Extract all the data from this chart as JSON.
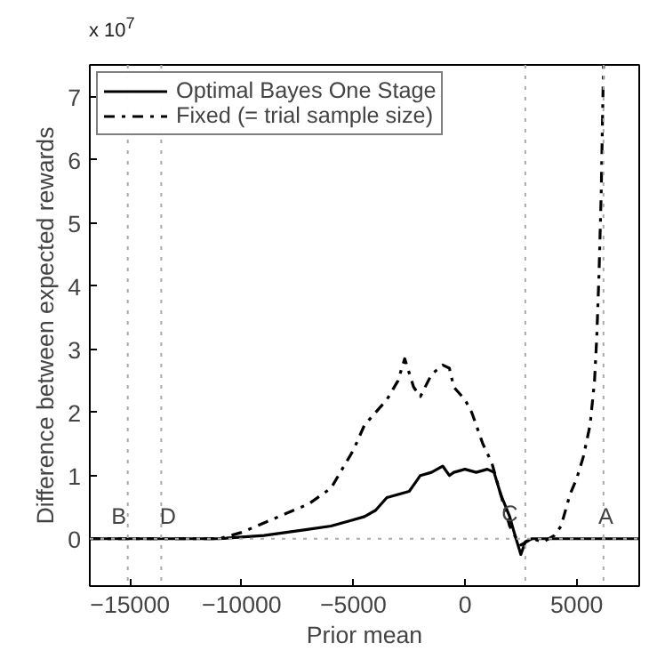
{
  "chart_data": {
    "type": "line",
    "xlabel": "Prior mean",
    "ylabel": "Difference between expected rewards",
    "annotations": [
      "x 10$^{7}$",
      {
        "text": "B",
        "x": -15500,
        "y": 0.15
      },
      {
        "text": "D",
        "x": -13300,
        "y": 0.15
      },
      {
        "text": "C",
        "x": 2000,
        "y": 0.2
      },
      {
        "text": "A",
        "x": 6300,
        "y": 0.15
      }
    ],
    "xlim": [
      -16800,
      7800
    ],
    "ylim": [
      -0.75,
      7.5
    ],
    "xticks": [
      -15000,
      -10000,
      -5000,
      0,
      5000
    ],
    "yticks": [
      0,
      1,
      2,
      3,
      4,
      5,
      6,
      7
    ],
    "grid": false,
    "legend": "top left",
    "marker": "none",
    "ref_lines": [
      {
        "axis": "y",
        "value": 0,
        "color": "#aaaaaa",
        "line_style": "dotted"
      },
      {
        "axis": "x",
        "value": -15100,
        "color": "#aaaaaa",
        "line_style": "dotted"
      },
      {
        "axis": "x",
        "value": -13600,
        "color": "#aaaaaa",
        "line_style": "dotted"
      },
      {
        "axis": "x",
        "value": 2700,
        "color": "#aaaaaa",
        "line_style": "dotted"
      },
      {
        "axis": "x",
        "value": 6200,
        "color": "#aaaaaa",
        "line_style": "dotted"
      }
    ],
    "series": [
      {
        "name": "Optimal Bayes One Stage",
        "color": "#000000",
        "line_style": "solid",
        "x": [
          -16800,
          -11000,
          -9000,
          -8000,
          -7000,
          -6000,
          -5000,
          -4500,
          -4000,
          -3500,
          -3000,
          -2500,
          -2200,
          -2000,
          -1500,
          -1000,
          -700,
          -500,
          0,
          500,
          1000,
          1300,
          1600,
          2000,
          2200,
          2500,
          2700,
          3000,
          3500,
          4000,
          7800
        ],
        "values": [
          0,
          0,
          0.05,
          0.1,
          0.15,
          0.2,
          0.3,
          0.35,
          0.45,
          0.65,
          0.7,
          0.75,
          0.9,
          1.0,
          1.05,
          1.15,
          1.0,
          1.05,
          1.1,
          1.05,
          1.1,
          1.05,
          0.7,
          0.35,
          0.1,
          -0.25,
          -0.05,
          0,
          0,
          0,
          0
        ]
      },
      {
        "name": "Fixed (= trial sample size)",
        "color": "#000000",
        "line_style": "dashdot",
        "x": [
          -16800,
          -11000,
          -10000,
          -9000,
          -8000,
          -7000,
          -6000,
          -5500,
          -5000,
          -4500,
          -4000,
          -3500,
          -3000,
          -2700,
          -2300,
          -2000,
          -1500,
          -1000,
          -700,
          -500,
          0,
          300,
          800,
          1200,
          1600,
          2000,
          2300,
          2500,
          3000,
          3500,
          4000,
          4300,
          4700,
          5000,
          5300,
          5600,
          5800,
          5900,
          6000,
          6100,
          6200
        ],
        "values": [
          0,
          0,
          0.1,
          0.25,
          0.4,
          0.55,
          0.8,
          1.1,
          1.4,
          1.8,
          2.0,
          2.2,
          2.5,
          2.85,
          2.4,
          2.25,
          2.6,
          2.75,
          2.7,
          2.4,
          2.2,
          2.0,
          1.5,
          1.2,
          0.7,
          0.2,
          0.0,
          -0.1,
          0.0,
          -0.05,
          0.05,
          0.2,
          0.7,
          0.95,
          1.3,
          1.8,
          2.5,
          3.2,
          4.2,
          5.5,
          7.5
        ]
      }
    ]
  }
}
